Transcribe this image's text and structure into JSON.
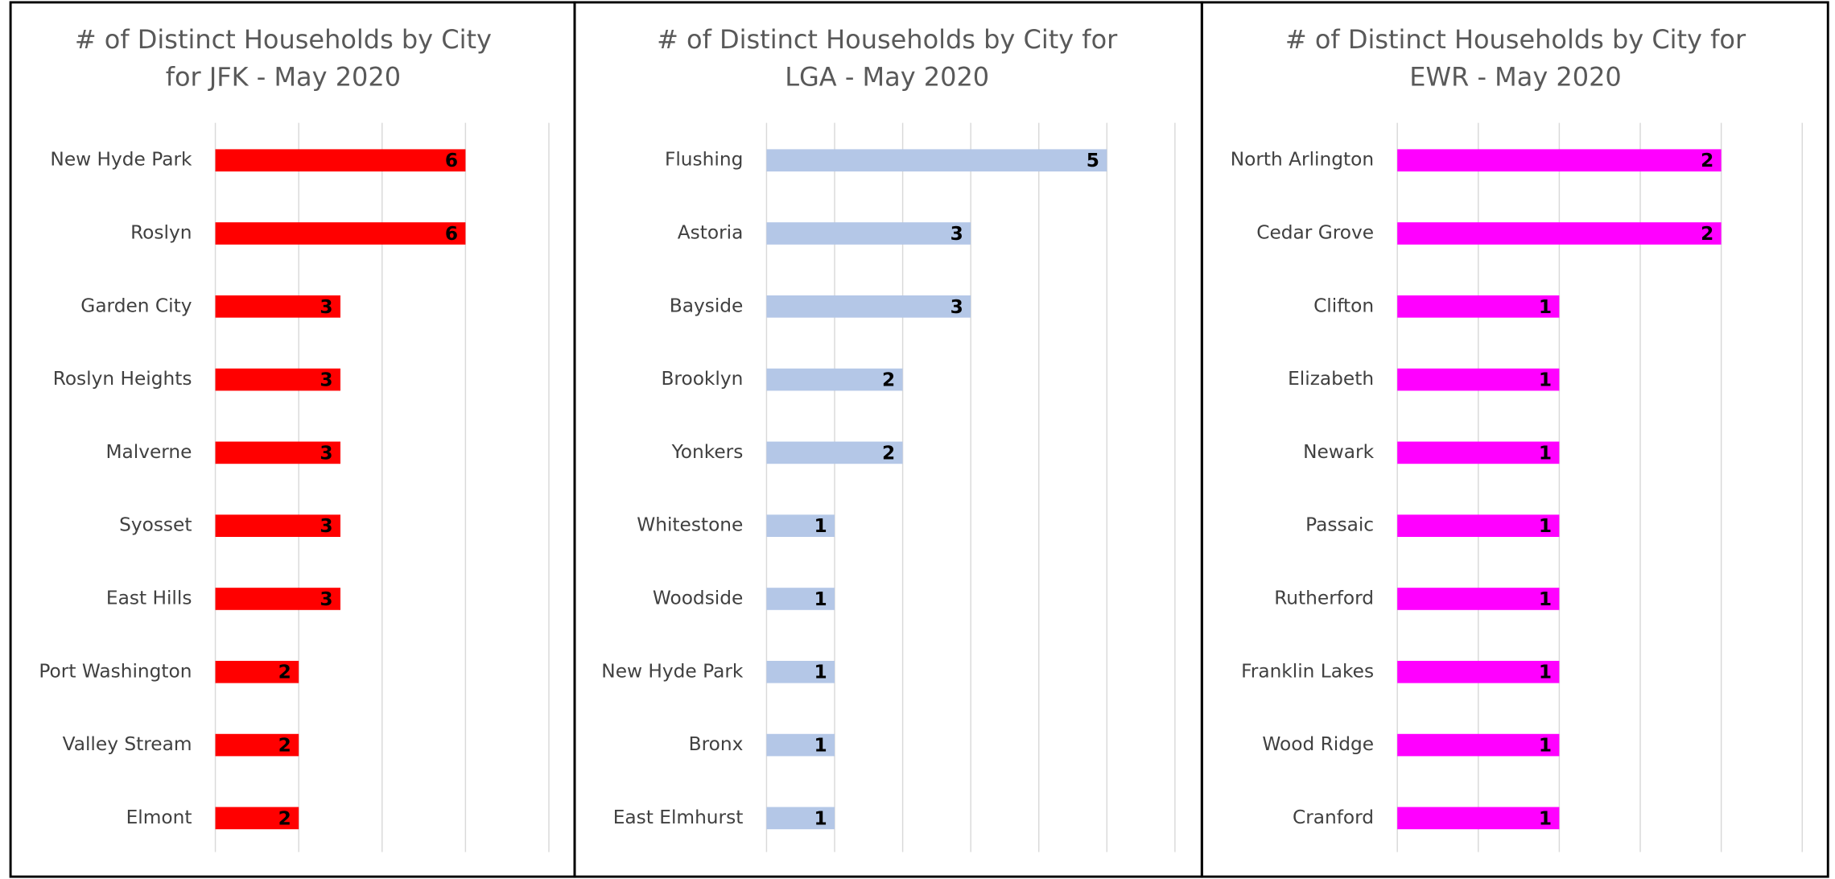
{
  "chart_data": [
    {
      "type": "bar",
      "orientation": "horizontal",
      "title": [
        "# of Distinct Households by City",
        "for JFK - May 2020"
      ],
      "categories": [
        "New Hyde Park",
        "Roslyn",
        "Garden City",
        "Roslyn Heights",
        "Malverne",
        "Syosset",
        "East Hills",
        "Port Washington",
        "Valley Stream",
        "Elmont"
      ],
      "values": [
        6,
        6,
        3,
        3,
        3,
        3,
        3,
        2,
        2,
        2
      ],
      "color": "#ff0000",
      "xlim": [
        0,
        8
      ],
      "xticks": [
        0,
        2,
        4,
        6,
        8
      ],
      "grid": true
    },
    {
      "type": "bar",
      "orientation": "horizontal",
      "title": [
        "# of Distinct Households by City for",
        "LGA - May 2020"
      ],
      "categories": [
        "Flushing",
        "Astoria",
        "Bayside",
        "Brooklyn",
        "Yonkers",
        "Whitestone",
        "Woodside",
        "New Hyde Park",
        "Bronx",
        "East Elmhurst"
      ],
      "values": [
        5,
        3,
        3,
        2,
        2,
        1,
        1,
        1,
        1,
        1
      ],
      "color": "#b4c7e7",
      "xlim": [
        0,
        6
      ],
      "xticks": [
        0,
        1,
        2,
        3,
        4,
        5,
        6
      ],
      "grid": true
    },
    {
      "type": "bar",
      "orientation": "horizontal",
      "title": [
        "# of Distinct Households by City for",
        "EWR - May 2020"
      ],
      "categories": [
        "North Arlington",
        "Cedar Grove",
        "Clifton",
        "Elizabeth",
        "Newark",
        "Passaic",
        "Rutherford",
        "Franklin Lakes",
        "Wood Ridge",
        "Cranford"
      ],
      "values": [
        2,
        2,
        1,
        1,
        1,
        1,
        1,
        1,
        1,
        1
      ],
      "color": "#ff00ff",
      "xlim": [
        0,
        2.5
      ],
      "xticks": [
        0,
        0.5,
        1,
        1.5,
        2,
        2.5
      ],
      "grid": true
    }
  ]
}
